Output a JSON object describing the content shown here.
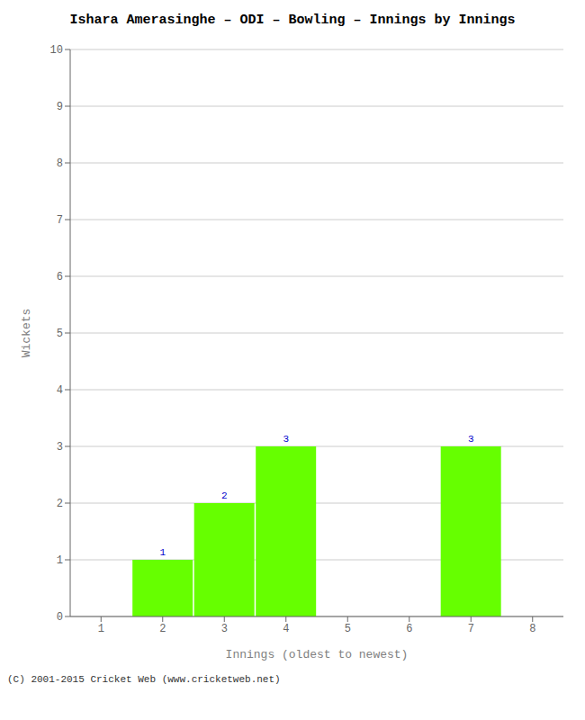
{
  "chart_data": {
    "type": "bar",
    "title": "Ishara Amerasinghe – ODI – Bowling – Innings by Innings",
    "x_label": "Innings (oldest to newest)",
    "y_label": "Wickets",
    "categories": [
      1,
      2,
      3,
      4,
      5,
      6,
      7,
      8
    ],
    "values": [
      0,
      1,
      2,
      3,
      0,
      0,
      3,
      0
    ],
    "color": "#66ff00",
    "ylim": [
      0,
      10
    ],
    "yticks": [
      0,
      1,
      2,
      3,
      4,
      5,
      6,
      7,
      8,
      9,
      10
    ],
    "grid": true,
    "data_labels": true,
    "annotations": [
      "(C) 2001-2015 Cricket Web (www.cricketweb.net)"
    ]
  }
}
